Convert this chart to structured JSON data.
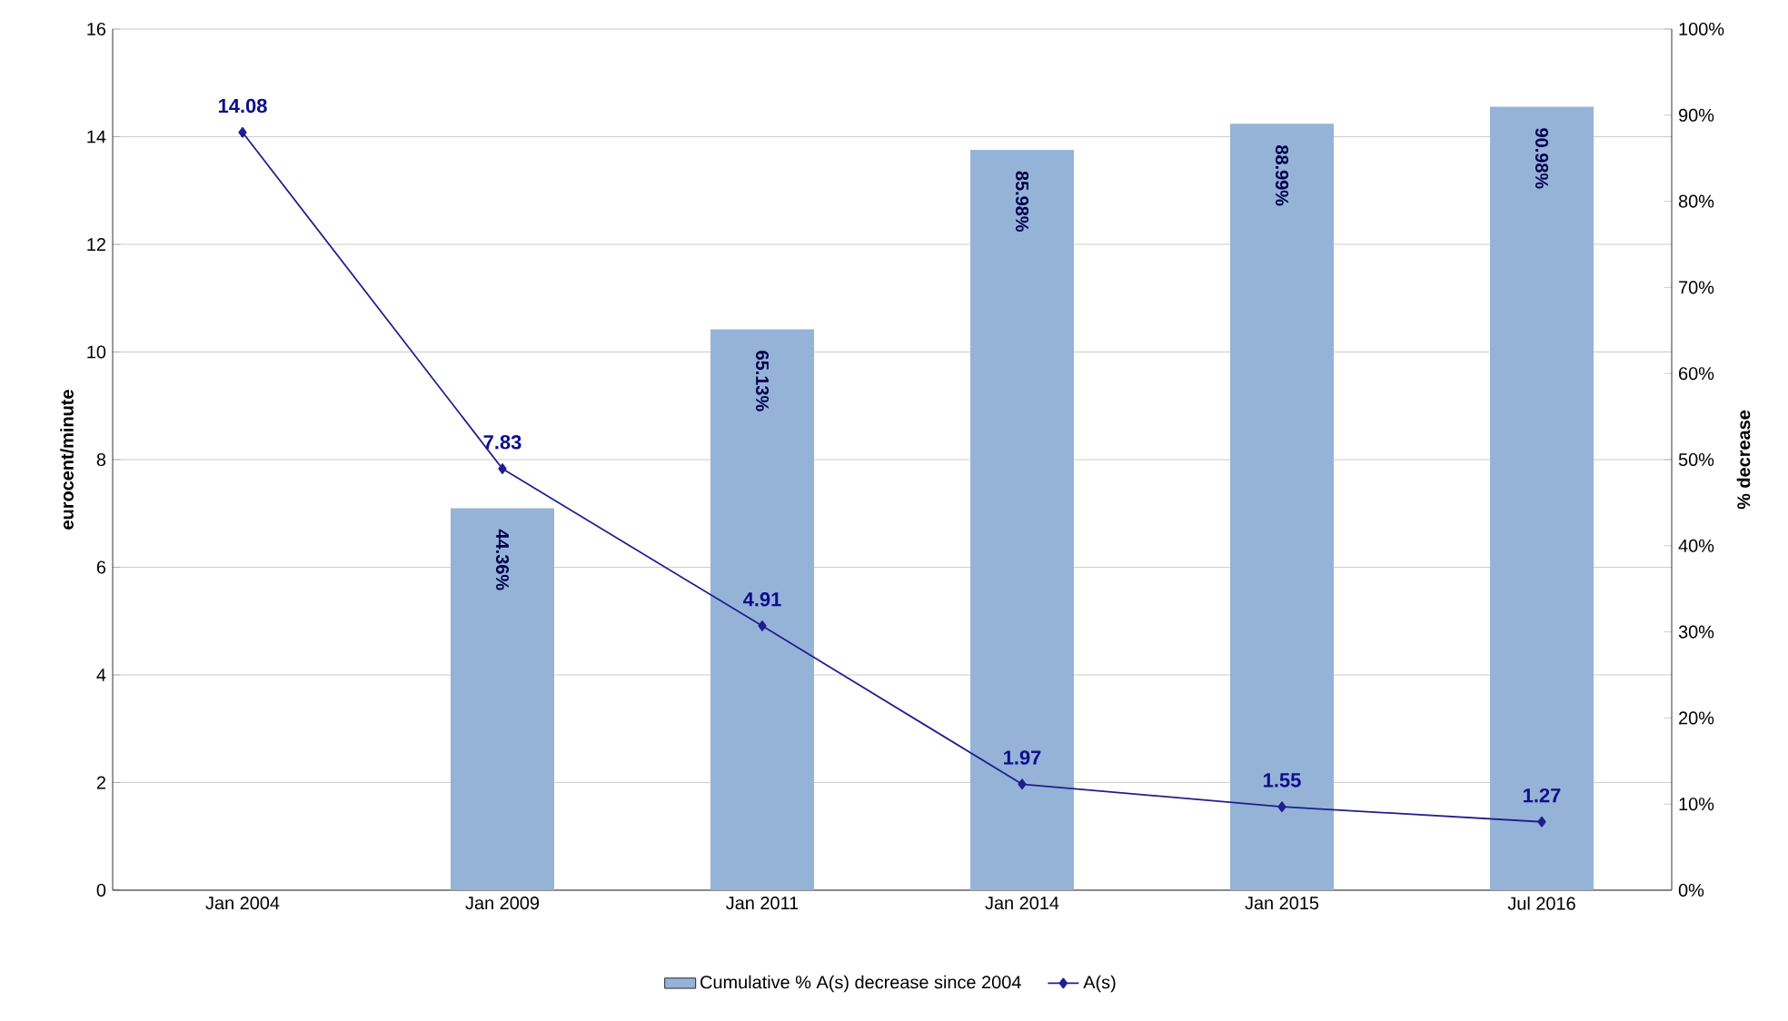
{
  "chart_data": {
    "type": "bar",
    "categories": [
      "Jan 2004",
      "Jan 2009",
      "Jan 2011",
      "Jan 2014",
      "Jan 2015",
      "Jul 2016"
    ],
    "series": [
      {
        "name": "Cumulative % A(s) decrease since 2004",
        "axis": "y2",
        "color": "#95b3d7",
        "values": [
          null,
          44.36,
          65.13,
          85.98,
          88.99,
          90.98
        ],
        "value_labels": [
          null,
          "44.36%",
          "65.13%",
          "85.98%",
          "88.99%",
          "90.98%"
        ]
      },
      {
        "name": "A(s)",
        "type": "line",
        "color": "#1f1f8f",
        "marker": "diamond",
        "values": [
          14.08,
          7.83,
          4.91,
          1.97,
          1.55,
          1.27
        ],
        "value_labels": [
          "14.08",
          "7.83",
          "4.91",
          "1.97",
          "1.55",
          "1.27"
        ]
      }
    ],
    "ylabel": "eurocent/minute",
    "y2label": "% decrease",
    "ylim": [
      0,
      16
    ],
    "yticks": [
      0,
      2,
      4,
      6,
      8,
      10,
      12,
      14,
      16
    ],
    "y2lim": [
      0,
      100
    ],
    "y2ticks": [
      {
        "value": 0,
        "label": "0%"
      },
      {
        "value": 10,
        "label": "10%"
      },
      {
        "value": 20,
        "label": "20%"
      },
      {
        "value": 30,
        "label": "30%"
      },
      {
        "value": 40,
        "label": "40%"
      },
      {
        "value": 50,
        "label": "50%"
      },
      {
        "value": 60,
        "label": "60%"
      },
      {
        "value": 70,
        "label": "70%"
      },
      {
        "value": 80,
        "label": "80%"
      },
      {
        "value": 90,
        "label": "90%"
      },
      {
        "value": 100,
        "label": "100%"
      }
    ],
    "grid": "y",
    "legend": "bottom"
  }
}
